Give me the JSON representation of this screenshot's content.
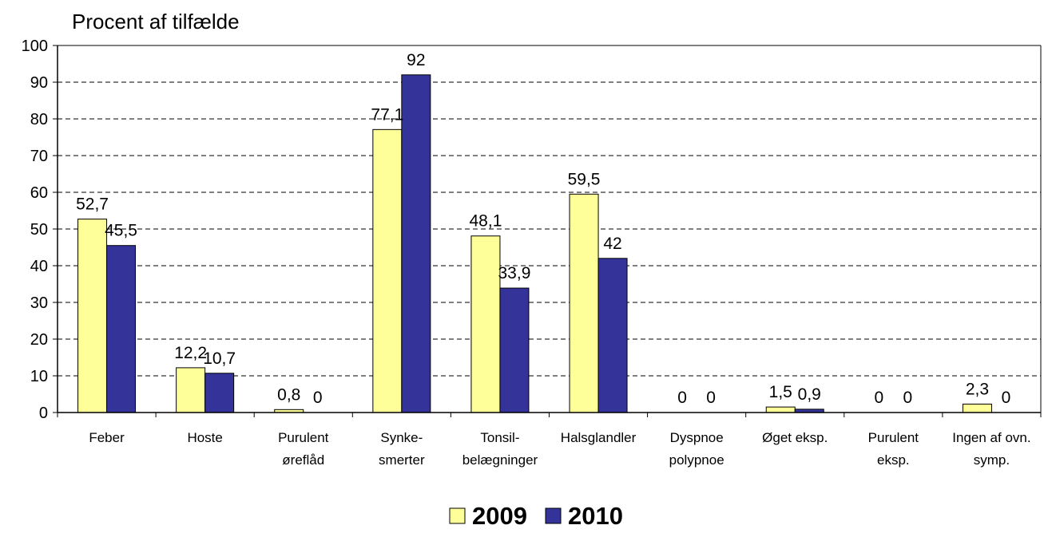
{
  "chart_data": {
    "type": "bar",
    "title": "Procent af tilfælde",
    "ylim": [
      0,
      100
    ],
    "yticks": [
      "0",
      "10",
      "20",
      "30",
      "40",
      "50",
      "60",
      "70",
      "80",
      "90",
      "100"
    ],
    "grid": true,
    "legend_position": "bottom-center",
    "categories": [
      [
        "Feber"
      ],
      [
        "Hoste"
      ],
      [
        "Purulent",
        "øreflåd"
      ],
      [
        "Synke-",
        "smerter"
      ],
      [
        "Tonsil-",
        "belægninger"
      ],
      [
        "Halsglandler"
      ],
      [
        "Dyspnoe",
        "polypnoe"
      ],
      [
        "Øget eksp."
      ],
      [
        "Purulent",
        "eksp."
      ],
      [
        "Ingen af ovn.",
        "symp."
      ]
    ],
    "series": [
      {
        "name": "2009",
        "color": "#FFFF99",
        "values": [
          52.7,
          12.2,
          0.8,
          77.1,
          48.1,
          59.5,
          0,
          1.5,
          0,
          2.3
        ],
        "labels": [
          "52,7",
          "12,2",
          "0,8",
          "77,1",
          "48,1",
          "59,5",
          "0",
          "1,5",
          "0",
          "2,3"
        ]
      },
      {
        "name": "2010",
        "color": "#333399",
        "values": [
          45.5,
          10.7,
          0,
          92,
          33.9,
          42,
          0,
          0.9,
          0,
          0
        ],
        "labels": [
          "45,5",
          "10,7",
          "0",
          "92",
          "33,9",
          "42",
          "0",
          "0,9",
          "0",
          "0"
        ]
      }
    ]
  }
}
